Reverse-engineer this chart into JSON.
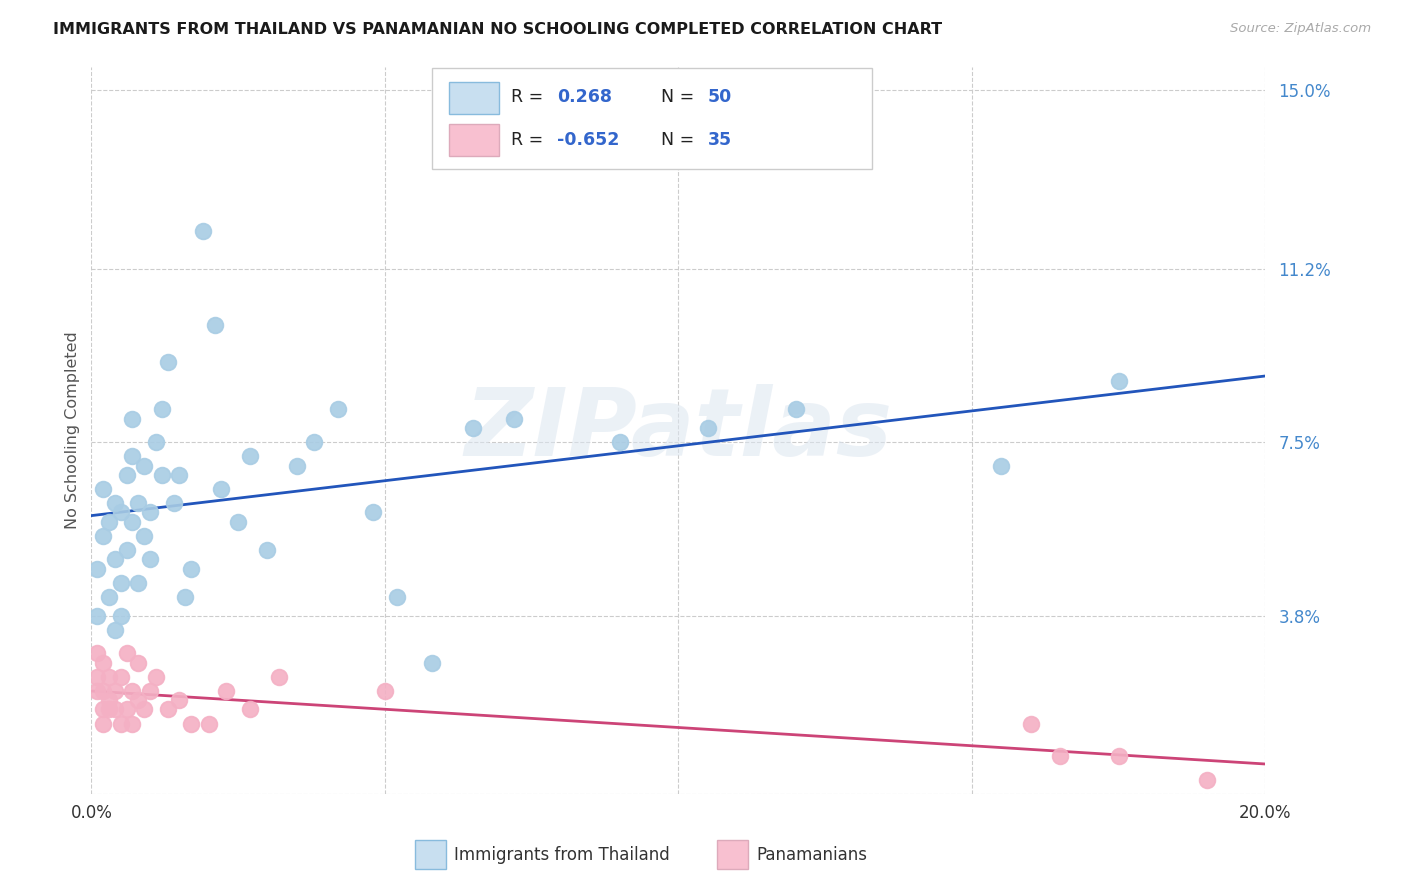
{
  "title": "IMMIGRANTS FROM THAILAND VS PANAMANIAN NO SCHOOLING COMPLETED CORRELATION CHART",
  "source": "Source: ZipAtlas.com",
  "ylabel": "No Schooling Completed",
  "xlim": [
    0.0,
    0.2
  ],
  "ylim": [
    0.0,
    0.155
  ],
  "r1": 0.268,
  "n1": 50,
  "r2": -0.652,
  "n2": 35,
  "scatter_color1": "#a8cce4",
  "scatter_color2": "#f4b0c4",
  "line_color1": "#2255bb",
  "line_color2": "#cc4477",
  "legend_color1": "#c8dff0",
  "legend_color2": "#f8c0d0",
  "background_color": "#ffffff",
  "grid_color": "#cccccc",
  "title_color": "#1a1a1a",
  "right_tick_color": "#4488cc",
  "ytick_vals": [
    0.0,
    0.038,
    0.075,
    0.112,
    0.15
  ],
  "ytick_labels": [
    "",
    "3.8%",
    "7.5%",
    "11.2%",
    "15.0%"
  ],
  "xtick_vals": [
    0.0,
    0.05,
    0.1,
    0.15,
    0.2
  ],
  "xtick_labels": [
    "0.0%",
    "",
    "",
    "",
    "20.0%"
  ],
  "watermark": "ZIPatlas",
  "bottom_legend1": "Immigrants from Thailand",
  "bottom_legend2": "Panamanians",
  "thailand_x": [
    0.001,
    0.001,
    0.002,
    0.002,
    0.003,
    0.003,
    0.004,
    0.004,
    0.004,
    0.005,
    0.005,
    0.005,
    0.006,
    0.006,
    0.007,
    0.007,
    0.007,
    0.008,
    0.008,
    0.009,
    0.009,
    0.01,
    0.01,
    0.011,
    0.012,
    0.012,
    0.013,
    0.014,
    0.015,
    0.016,
    0.017,
    0.019,
    0.021,
    0.022,
    0.025,
    0.027,
    0.03,
    0.035,
    0.038,
    0.042,
    0.048,
    0.052,
    0.058,
    0.065,
    0.072,
    0.09,
    0.105,
    0.12,
    0.155,
    0.175
  ],
  "thailand_y": [
    0.048,
    0.038,
    0.055,
    0.065,
    0.058,
    0.042,
    0.05,
    0.062,
    0.035,
    0.045,
    0.06,
    0.038,
    0.052,
    0.068,
    0.058,
    0.072,
    0.08,
    0.045,
    0.062,
    0.055,
    0.07,
    0.05,
    0.06,
    0.075,
    0.068,
    0.082,
    0.092,
    0.062,
    0.068,
    0.042,
    0.048,
    0.12,
    0.1,
    0.065,
    0.058,
    0.072,
    0.052,
    0.07,
    0.075,
    0.082,
    0.06,
    0.042,
    0.028,
    0.078,
    0.08,
    0.075,
    0.078,
    0.082,
    0.07,
    0.088
  ],
  "panama_x": [
    0.001,
    0.001,
    0.001,
    0.002,
    0.002,
    0.002,
    0.002,
    0.003,
    0.003,
    0.003,
    0.004,
    0.004,
    0.005,
    0.005,
    0.006,
    0.006,
    0.007,
    0.007,
    0.008,
    0.008,
    0.009,
    0.01,
    0.011,
    0.013,
    0.015,
    0.017,
    0.02,
    0.023,
    0.027,
    0.032,
    0.05,
    0.16,
    0.165,
    0.175,
    0.19
  ],
  "panama_y": [
    0.03,
    0.025,
    0.022,
    0.028,
    0.022,
    0.018,
    0.015,
    0.025,
    0.02,
    0.018,
    0.022,
    0.018,
    0.025,
    0.015,
    0.03,
    0.018,
    0.022,
    0.015,
    0.028,
    0.02,
    0.018,
    0.022,
    0.025,
    0.018,
    0.02,
    0.015,
    0.015,
    0.022,
    0.018,
    0.025,
    0.022,
    0.015,
    0.008,
    0.008,
    0.003
  ]
}
